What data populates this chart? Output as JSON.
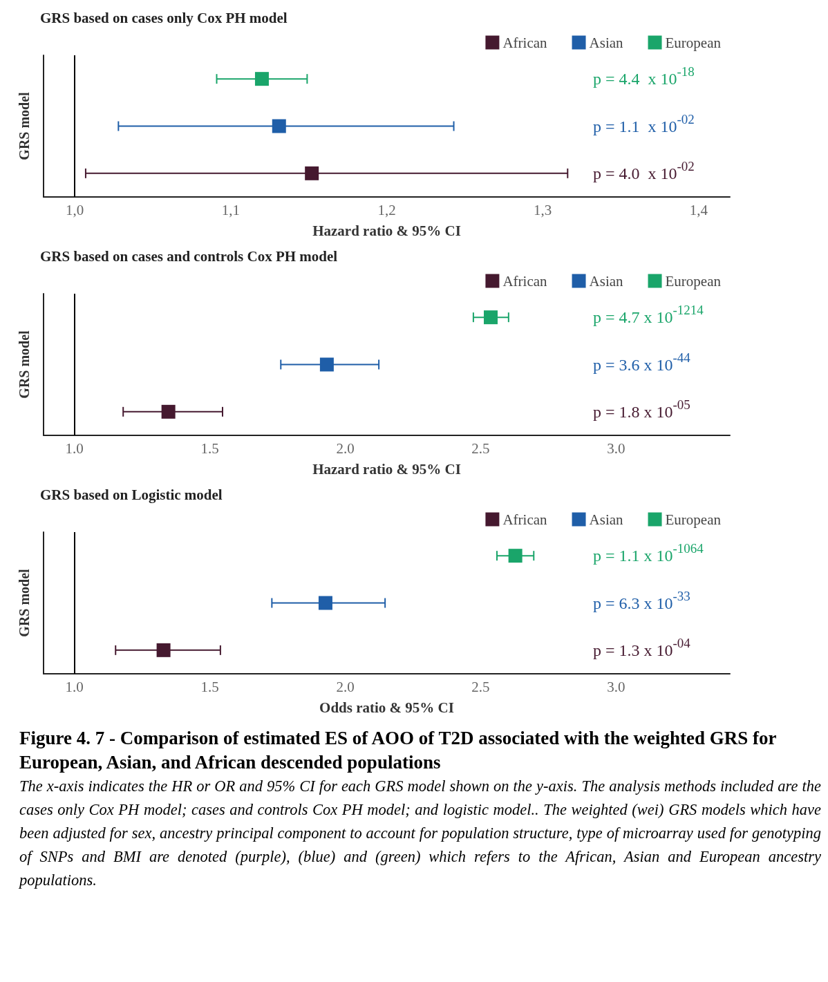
{
  "chart_data": [
    {
      "type": "scatter",
      "orientation": "horizontal",
      "title": "GRS based on cases only Cox PH model",
      "xlabel": "Hazard ratio & 95% CI",
      "ylabel": "GRS model",
      "categories": [
        null,
        null,
        null
      ],
      "xlim": [
        0.98,
        1.42
      ],
      "xticks": [
        {
          "value": 1.0,
          "label": "1,0"
        },
        {
          "value": 1.1,
          "label": "1,1"
        },
        {
          "value": 1.2,
          "label": "1,2"
        },
        {
          "value": 1.3,
          "label": "1,3"
        },
        {
          "value": 1.4,
          "label": "1,4"
        }
      ],
      "tick_labels": "x",
      "legend": "top right",
      "marker": "square",
      "series": [
        {
          "name": "African",
          "color": "#45192f",
          "values": [
            null,
            null,
            1.152
          ],
          "errors": [
            null,
            null,
            [
              1.007,
              1.316
            ]
          ]
        },
        {
          "name": "Asian",
          "color": "#1f5ea8",
          "values": [
            null,
            1.131,
            null
          ],
          "errors": [
            null,
            [
              1.028,
              1.243
            ],
            null
          ]
        },
        {
          "name": "European",
          "color": "#1aa56a",
          "values": [
            1.12,
            null,
            null
          ],
          "errors": [
            [
              1.091,
              1.149
            ],
            null,
            null
          ]
        }
      ],
      "ref_lines": [
        {
          "axis": "x",
          "value": 1.0,
          "color": "#000000"
        }
      ],
      "annotations": [
        "p = 4.4  x 10$^{-18}$",
        "p = 1.1  x 10$^{-02}$",
        "p = 4.0  x 10$^{-02}$"
      ]
    },
    {
      "type": "scatter",
      "orientation": "horizontal",
      "title": "GRS based on cases and controls Cox PH model",
      "xlabel": "Hazard ratio & 95% CI",
      "ylabel": "GRS model",
      "categories": [
        null,
        null,
        null
      ],
      "xlim": [
        0.886,
        3.42
      ],
      "xticks": [
        {
          "value": 1.0,
          "label": "1.0"
        },
        {
          "value": 1.5,
          "label": "1.5"
        },
        {
          "value": 2.0,
          "label": "2.0"
        },
        {
          "value": 2.5,
          "label": "2.5"
        },
        {
          "value": 3.0,
          "label": "3.0"
        }
      ],
      "tick_labels": "x",
      "legend": "top right",
      "marker": "square",
      "series": [
        {
          "name": "African",
          "color": "#45192f",
          "values": [
            null,
            null,
            1.347
          ],
          "errors": [
            null,
            null,
            [
              1.18,
              1.547
            ]
          ]
        },
        {
          "name": "Asian",
          "color": "#1f5ea8",
          "values": [
            null,
            1.932,
            null
          ],
          "errors": [
            null,
            [
              1.762,
              2.124
            ],
            null
          ]
        },
        {
          "name": "European",
          "color": "#1aa56a",
          "values": [
            2.537,
            null,
            null
          ],
          "errors": [
            [
              2.473,
              2.603
            ],
            null,
            null
          ]
        }
      ],
      "ref_lines": [
        {
          "axis": "x",
          "value": 1.0,
          "color": "#000000"
        }
      ],
      "annotations": [
        "p = 4.7 x 10$^{-1214}$",
        "p = 3.6 x 10$^{-44}$",
        "p = 1.8 x 10$^{-05}$"
      ]
    },
    {
      "type": "scatter",
      "orientation": "horizontal",
      "title": "GRS based on Logistic model",
      "xlabel": "Odds ratio & 95% CI",
      "ylabel": "GRS model",
      "categories": [
        null,
        null,
        null
      ],
      "xlim": [
        0.886,
        3.42
      ],
      "xticks": [
        {
          "value": 1.0,
          "label": "1.0"
        },
        {
          "value": 1.5,
          "label": "1.5"
        },
        {
          "value": 2.0,
          "label": "2.0"
        },
        {
          "value": 2.5,
          "label": "2.5"
        },
        {
          "value": 3.0,
          "label": "3.0"
        }
      ],
      "tick_labels": "x",
      "legend": "top right",
      "marker": "square",
      "series": [
        {
          "name": "African",
          "color": "#45192f",
          "values": [
            null,
            null,
            1.329
          ],
          "errors": [
            null,
            null,
            [
              1.152,
              1.539
            ]
          ]
        },
        {
          "name": "Asian",
          "color": "#1f5ea8",
          "values": [
            null,
            1.927,
            null
          ],
          "errors": [
            null,
            [
              1.729,
              2.147
            ],
            null
          ]
        },
        {
          "name": "European",
          "color": "#1aa56a",
          "values": [
            2.628,
            null,
            null
          ],
          "errors": [
            [
              2.56,
              2.696
            ],
            null,
            null
          ]
        }
      ],
      "ref_lines": [
        {
          "axis": "x",
          "value": 1.0,
          "color": "#000000"
        }
      ],
      "annotations": [
        "p = 1.1 x 10$^{-1064}$",
        "p = 6.3 x 10$^{-33}$",
        "p = 1.3 x 10$^{-04}$"
      ]
    },
    {
      "type": "other",
      "title": "Figure 4. 7 - Comparison of estimated ES of AOO of T2D associated with the weighted GRS for European, Asian, and African descended populations",
      "annotations": [
        "The x-axis indicates the HR or OR and 95% CI for each GRS model shown on the y-axis.  The analysis methods included are the cases only Cox PH model; cases and controls Cox PH model; and logistic model.. The weighted (wei) GRS models which have been adjusted for sex, ancestry principal component to account for population structure, type of microarray used for genotyping of SNPs and BMI are denoted (purple),  (blue) and  (green) which refers to the  African, Asian and European ancestry populations."
      ]
    }
  ]
}
